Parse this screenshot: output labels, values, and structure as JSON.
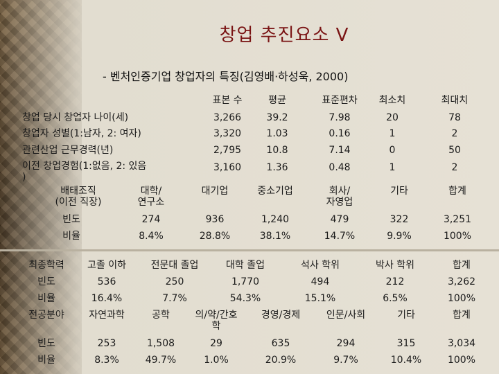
{
  "slide": {
    "title": "창업 추진요소 V",
    "subtitle": "- 벤처인증기업 창업자의 특징(김영배·하성욱, 2000)"
  },
  "stats_table": {
    "headers": [
      "표본 수",
      "평균",
      "표준편차",
      "최소치",
      "최대치"
    ],
    "rows": [
      {
        "label": "창업 당시 창업자 나이(세)",
        "values": [
          "3,266",
          "39.2",
          "7.98",
          "20",
          "78"
        ]
      },
      {
        "label": "창업자 성별(1:남자, 2: 여자)",
        "values": [
          "3,320",
          "1.03",
          "0.16",
          "1",
          "2"
        ]
      },
      {
        "label": "관련산업 근무경력(년)",
        "values": [
          "2,795",
          "10.8",
          "7.14",
          "0",
          "50"
        ]
      },
      {
        "label": "이전 창업경험(1:없음, 2: 있음\n)",
        "values": [
          "3,160",
          "1.36",
          "0.48",
          "1",
          "2"
        ]
      }
    ]
  },
  "org_table": {
    "headers": [
      "배태조직\n(이전 직장)",
      "대학/\n연구소",
      "대기업",
      "중소기업",
      "회사/\n자영업",
      "기타",
      "합계"
    ],
    "rows": [
      {
        "label": "빈도",
        "values": [
          "274",
          "936",
          "1,240",
          "479",
          "322",
          "3,251"
        ]
      },
      {
        "label": "비율",
        "values": [
          "8.4%",
          "28.8%",
          "38.1%",
          "14.7%",
          "9.9%",
          "100%"
        ]
      }
    ]
  },
  "edu_table": {
    "headers": [
      "최종학력",
      "고졸 이하",
      "전문대 졸업",
      "대학 졸업",
      "석사 학위",
      "박사 학위",
      "합계"
    ],
    "rows": [
      {
        "label": "빈도",
        "values": [
          "536",
          "250",
          "1,770",
          "494",
          "212",
          "3,262"
        ]
      },
      {
        "label": "비율",
        "values": [
          "16.4%",
          "7.7%",
          "54.3%",
          "15.1%",
          "6.5%",
          "100%"
        ]
      }
    ]
  },
  "major_table": {
    "headers": [
      "전공분야",
      "자연과학",
      "공학",
      "의/약/간호\n학",
      "경영/경제",
      "인문/사회",
      "기타",
      "합계"
    ],
    "rows": [
      {
        "label": "빈도",
        "values": [
          "253",
          "1,508",
          "29",
          "635",
          "294",
          "315",
          "3,034"
        ]
      },
      {
        "label": "비율",
        "values": [
          "8.3%",
          "49.7%",
          "1.0%",
          "20.9%",
          "9.7%",
          "10.4%",
          "100%"
        ]
      }
    ]
  }
}
